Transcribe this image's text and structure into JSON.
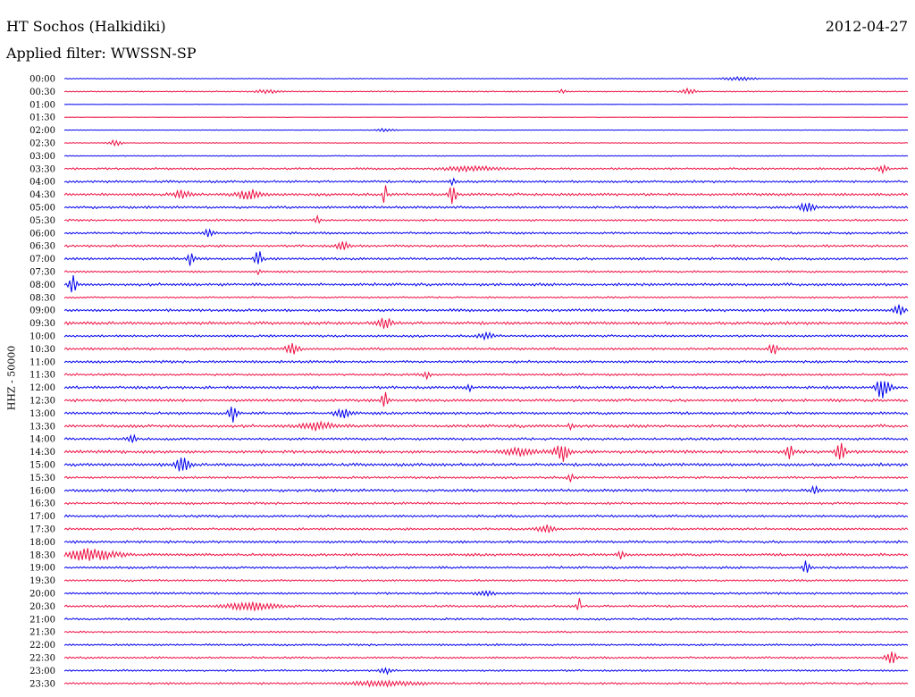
{
  "header": {
    "station": "HT Sochos (Halkidiki)",
    "date": "2012-04-27",
    "filter": "Applied filter: WWSSN-SP"
  },
  "channel_label": "HHZ - 50000",
  "colors": {
    "even_trace": "#0000ee",
    "odd_trace": "#ee1144"
  },
  "chart_data": {
    "type": "line",
    "title": "HT Sochos (Halkidiki)",
    "subtitle": "Applied filter: WWSSN-SP",
    "ylabel": "HHZ - 50000",
    "xlabel": "",
    "grid": false,
    "legend": "none",
    "rows": [
      "00:00",
      "00:30",
      "01:00",
      "01:30",
      "02:00",
      "02:30",
      "03:00",
      "03:30",
      "04:00",
      "04:30",
      "05:00",
      "05:30",
      "06:00",
      "06:30",
      "07:00",
      "07:30",
      "08:00",
      "08:30",
      "09:00",
      "09:30",
      "10:00",
      "10:30",
      "11:00",
      "11:30",
      "12:00",
      "12:30",
      "13:00",
      "13:30",
      "14:00",
      "14:30",
      "15:00",
      "15:30",
      "16:00",
      "16:30",
      "17:00",
      "17:30",
      "18:00",
      "18:30",
      "19:00",
      "19:30",
      "20:00",
      "20:30",
      "21:00",
      "21:30",
      "22:00",
      "22:30",
      "23:00",
      "23:30"
    ],
    "row_noise": [
      0.3,
      0.5,
      0.2,
      0.2,
      0.3,
      0.3,
      0.4,
      0.9,
      1.0,
      1.2,
      1.1,
      0.9,
      1.0,
      1.0,
      1.1,
      0.9,
      1.2,
      0.8,
      1.2,
      1.3,
      1.0,
      1.1,
      1.1,
      1.0,
      1.2,
      1.2,
      1.2,
      1.3,
      1.1,
      1.4,
      1.3,
      1.0,
      1.2,
      1.0,
      1.1,
      1.0,
      1.1,
      1.2,
      1.0,
      0.9,
      1.0,
      1.0,
      0.9,
      0.8,
      0.9,
      0.9,
      0.8,
      0.9
    ],
    "events": [
      {
        "row": 0,
        "x": 0.8,
        "amp": 2.0,
        "w": 0.02
      },
      {
        "row": 1,
        "x": 0.59,
        "amp": 3.0,
        "w": 0.004
      },
      {
        "row": 1,
        "x": 0.74,
        "amp": 3.5,
        "w": 0.008
      },
      {
        "row": 1,
        "x": 0.24,
        "amp": 2.0,
        "w": 0.015
      },
      {
        "row": 4,
        "x": 0.38,
        "amp": 2.0,
        "w": 0.01
      },
      {
        "row": 5,
        "x": 0.06,
        "amp": 3.0,
        "w": 0.008
      },
      {
        "row": 7,
        "x": 0.48,
        "amp": 2.5,
        "w": 0.03
      },
      {
        "row": 7,
        "x": 0.97,
        "amp": 4.0,
        "w": 0.006
      },
      {
        "row": 8,
        "x": 0.46,
        "amp": 5.0,
        "w": 0.003
      },
      {
        "row": 9,
        "x": 0.38,
        "amp": 12.0,
        "w": 0.002
      },
      {
        "row": 9,
        "x": 0.46,
        "amp": 12.0,
        "w": 0.004
      },
      {
        "row": 9,
        "x": 0.22,
        "amp": 5.0,
        "w": 0.015
      },
      {
        "row": 9,
        "x": 0.14,
        "amp": 4.0,
        "w": 0.01
      },
      {
        "row": 10,
        "x": 0.88,
        "amp": 4.0,
        "w": 0.01
      },
      {
        "row": 11,
        "x": 0.3,
        "amp": 5.0,
        "w": 0.003
      },
      {
        "row": 12,
        "x": 0.17,
        "amp": 4.0,
        "w": 0.006
      },
      {
        "row": 13,
        "x": 0.33,
        "amp": 4.0,
        "w": 0.008
      },
      {
        "row": 14,
        "x": 0.15,
        "amp": 8.0,
        "w": 0.004
      },
      {
        "row": 14,
        "x": 0.23,
        "amp": 10.0,
        "w": 0.004
      },
      {
        "row": 15,
        "x": 0.23,
        "amp": 5.0,
        "w": 0.002
      },
      {
        "row": 16,
        "x": 0.01,
        "amp": 11.0,
        "w": 0.004
      },
      {
        "row": 18,
        "x": 0.99,
        "amp": 6.0,
        "w": 0.006
      },
      {
        "row": 19,
        "x": 0.38,
        "amp": 5.0,
        "w": 0.01
      },
      {
        "row": 20,
        "x": 0.5,
        "amp": 3.0,
        "w": 0.01
      },
      {
        "row": 21,
        "x": 0.27,
        "amp": 6.0,
        "w": 0.008
      },
      {
        "row": 21,
        "x": 0.84,
        "amp": 7.0,
        "w": 0.005
      },
      {
        "row": 23,
        "x": 0.43,
        "amp": 4.0,
        "w": 0.004
      },
      {
        "row": 24,
        "x": 0.97,
        "amp": 12.0,
        "w": 0.008
      },
      {
        "row": 24,
        "x": 0.48,
        "amp": 4.0,
        "w": 0.004
      },
      {
        "row": 25,
        "x": 0.38,
        "amp": 10.0,
        "w": 0.004
      },
      {
        "row": 26,
        "x": 0.2,
        "amp": 10.0,
        "w": 0.005
      },
      {
        "row": 26,
        "x": 0.33,
        "amp": 5.0,
        "w": 0.01
      },
      {
        "row": 27,
        "x": 0.3,
        "amp": 4.0,
        "w": 0.02
      },
      {
        "row": 27,
        "x": 0.6,
        "amp": 6.0,
        "w": 0.002
      },
      {
        "row": 28,
        "x": 0.08,
        "amp": 4.0,
        "w": 0.006
      },
      {
        "row": 29,
        "x": 0.59,
        "amp": 10.0,
        "w": 0.008
      },
      {
        "row": 29,
        "x": 0.86,
        "amp": 9.0,
        "w": 0.005
      },
      {
        "row": 29,
        "x": 0.92,
        "amp": 9.0,
        "w": 0.006
      },
      {
        "row": 29,
        "x": 0.54,
        "amp": 4.0,
        "w": 0.02
      },
      {
        "row": 30,
        "x": 0.14,
        "amp": 8.0,
        "w": 0.008
      },
      {
        "row": 31,
        "x": 0.6,
        "amp": 4.0,
        "w": 0.004
      },
      {
        "row": 32,
        "x": 0.89,
        "amp": 5.0,
        "w": 0.005
      },
      {
        "row": 35,
        "x": 0.57,
        "amp": 4.0,
        "w": 0.01
      },
      {
        "row": 37,
        "x": 0.03,
        "amp": 6.0,
        "w": 0.03
      },
      {
        "row": 37,
        "x": 0.66,
        "amp": 5.0,
        "w": 0.004
      },
      {
        "row": 38,
        "x": 0.88,
        "amp": 8.0,
        "w": 0.004
      },
      {
        "row": 40,
        "x": 0.5,
        "amp": 3.0,
        "w": 0.01
      },
      {
        "row": 41,
        "x": 0.61,
        "amp": 12.0,
        "w": 0.002
      },
      {
        "row": 41,
        "x": 0.22,
        "amp": 4.0,
        "w": 0.03
      },
      {
        "row": 45,
        "x": 0.98,
        "amp": 8.0,
        "w": 0.006
      },
      {
        "row": 46,
        "x": 0.38,
        "amp": 4.0,
        "w": 0.006
      },
      {
        "row": 47,
        "x": 0.38,
        "amp": 3.0,
        "w": 0.04
      }
    ]
  }
}
